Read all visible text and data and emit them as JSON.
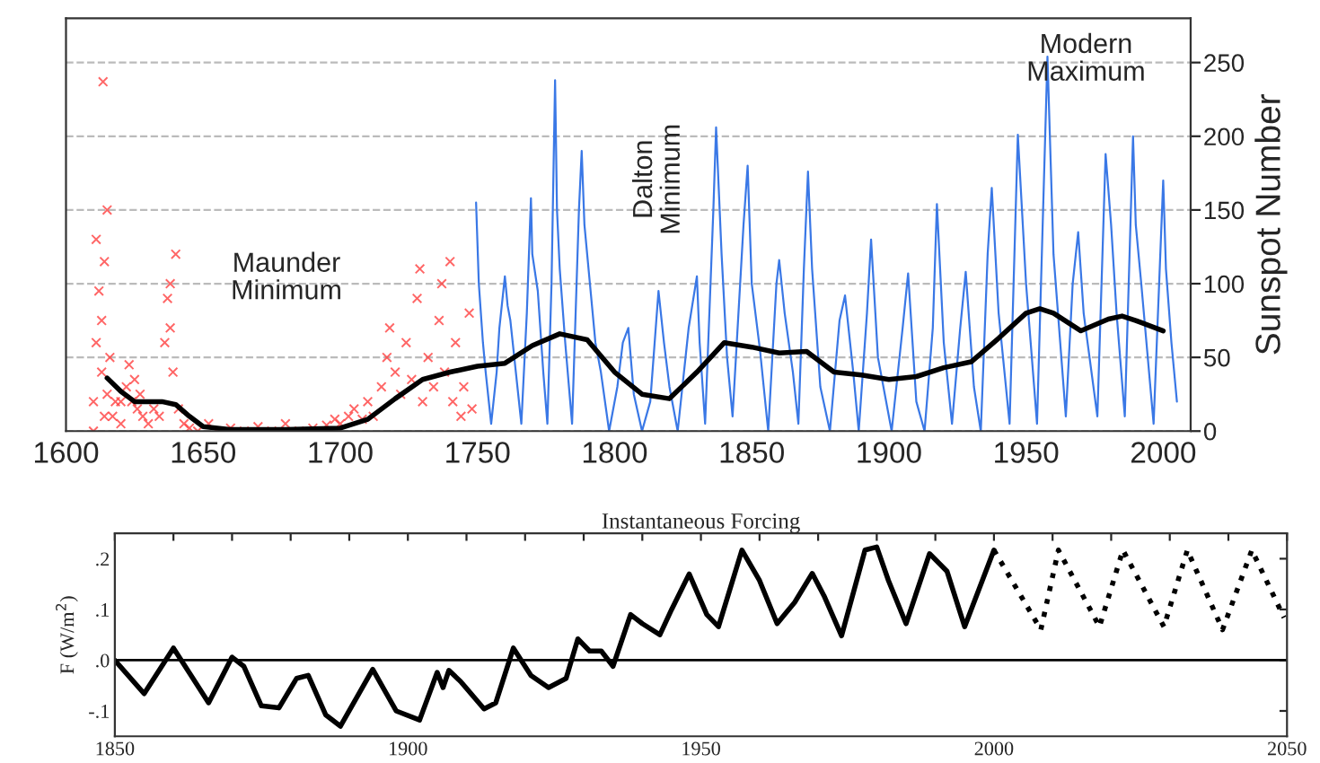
{
  "chart_data": [
    {
      "type": "line",
      "ylabel": "Sunspot Number",
      "xlim": [
        1600,
        2010
      ],
      "ylim": [
        0,
        280
      ],
      "xticks": [
        1600,
        1650,
        1700,
        1750,
        1800,
        1850,
        1900,
        1950,
        2000
      ],
      "yticks": [
        0,
        50,
        100,
        150,
        200,
        250
      ],
      "grid": "y",
      "annotations": [
        "Maunder\nMinimum",
        "Dalton\nMinimum",
        "Modern\nMaximum"
      ],
      "series": [
        {
          "type": "scatter",
          "marker": "cross",
          "color": "#ff4040",
          "x": [
            1610,
            1610,
            1611,
            1611,
            1613.5,
            1612,
            1613,
            1613,
            1614,
            1614,
            1615,
            1615,
            1616,
            1617,
            1618,
            1620,
            1620,
            1622,
            1623,
            1624,
            1625,
            1626,
            1627,
            1628,
            1630,
            1632,
            1634,
            1636,
            1637,
            1638,
            1638,
            1639,
            1640,
            1641,
            1643,
            1645,
            1648,
            1652,
            1655,
            1660,
            1665,
            1670,
            1675,
            1680,
            1685,
            1690,
            1695,
            1698,
            1700,
            1703,
            1705,
            1708,
            1710,
            1712,
            1715,
            1717,
            1718,
            1720,
            1722,
            1724,
            1726,
            1728,
            1729,
            1730,
            1732,
            1734,
            1736,
            1737,
            1738,
            1740,
            1741,
            1742,
            1744,
            1745,
            1747,
            1748
          ],
          "values": [
            0,
            20,
            60,
            130,
            237,
            95,
            75,
            40,
            115,
            10,
            150,
            25,
            50,
            10,
            20,
            5,
            20,
            30,
            45,
            20,
            35,
            15,
            25,
            10,
            5,
            15,
            10,
            60,
            90,
            100,
            70,
            40,
            120,
            15,
            5,
            2,
            0,
            5,
            0,
            2,
            0,
            3,
            0,
            5,
            0,
            2,
            4,
            8,
            5,
            10,
            15,
            8,
            20,
            10,
            30,
            50,
            70,
            40,
            25,
            60,
            35,
            90,
            110,
            20,
            50,
            30,
            75,
            100,
            40,
            115,
            20,
            60,
            10,
            30,
            80,
            15
          ]
        },
        {
          "type": "line",
          "color": "#3a78e6",
          "x": [
            1749.5,
            1750.5,
            1752,
            1753,
            1755,
            1757,
            1758,
            1760,
            1761,
            1762,
            1764,
            1766,
            1768,
            1769.5,
            1770,
            1772,
            1774,
            1775.5,
            1777,
            1778.3,
            1779,
            1780,
            1782,
            1784.5,
            1787,
            1788,
            1789,
            1791,
            1793,
            1795,
            1798,
            1801,
            1803,
            1805,
            1807,
            1810,
            1813,
            1816,
            1818,
            1820,
            1823,
            1827,
            1830,
            1831,
            1833,
            1836,
            1837,
            1839,
            1841,
            1843,
            1847,
            1848.5,
            1850,
            1853,
            1856,
            1859,
            1860,
            1862,
            1865,
            1867,
            1869,
            1870.5,
            1872,
            1875,
            1878.5,
            1882,
            1884,
            1887,
            1889,
            1892,
            1893.5,
            1896,
            1901,
            1905,
            1907,
            1910,
            1913,
            1916,
            1917.5,
            1920,
            1923,
            1926,
            1928,
            1931,
            1933.5,
            1936,
            1937.5,
            1940,
            1944,
            1947,
            1950,
            1954,
            1957.8,
            1960,
            1964.5,
            1967,
            1969,
            1971,
            1976,
            1979,
            1981,
            1983,
            1986,
            1989,
            1990,
            1992,
            1996.5,
            2000,
            2001,
            2003,
            2005
          ],
          "values": [
            155,
            100,
            60,
            40,
            5,
            40,
            70,
            105,
            85,
            75,
            40,
            5,
            80,
            158,
            120,
            95,
            40,
            5,
            100,
            238,
            150,
            110,
            60,
            5,
            150,
            190,
            140,
            100,
            60,
            40,
            0,
            30,
            60,
            70,
            25,
            0,
            20,
            95,
            60,
            30,
            0,
            70,
            105,
            60,
            5,
            150,
            206,
            120,
            50,
            10,
            140,
            180,
            100,
            55,
            0,
            100,
            116,
            80,
            40,
            5,
            110,
            176,
            110,
            30,
            0,
            75,
            92,
            40,
            0,
            80,
            130,
            50,
            0,
            70,
            107,
            20,
            0,
            70,
            154,
            60,
            5,
            70,
            108,
            30,
            0,
            120,
            165,
            80,
            5,
            201,
            100,
            5,
            254,
            120,
            10,
            100,
            135,
            80,
            10,
            188,
            140,
            80,
            10,
            200,
            140,
            100,
            5,
            170,
            110,
            60,
            20
          ]
        },
        {
          "type": "line",
          "color": "#000000",
          "x": [
            1615,
            1620,
            1625,
            1635,
            1640,
            1645,
            1650,
            1660,
            1680,
            1700,
            1710,
            1720,
            1730,
            1740,
            1750,
            1760,
            1770,
            1780,
            1790,
            1800,
            1810,
            1820,
            1830,
            1840,
            1850,
            1860,
            1870,
            1880,
            1890,
            1900,
            1910,
            1920,
            1930,
            1940,
            1950,
            1955,
            1960,
            1970,
            1980,
            1985,
            1990,
            2000
          ],
          "values": [
            36,
            27,
            20,
            20,
            18,
            10,
            3,
            1,
            1,
            2,
            8,
            22,
            35,
            40,
            44,
            46,
            58,
            66,
            62,
            40,
            25,
            22,
            40,
            60,
            57,
            53,
            54,
            40,
            38,
            35,
            37,
            43,
            47,
            63,
            80,
            83,
            80,
            68,
            76,
            78,
            75,
            68
          ]
        }
      ]
    },
    {
      "type": "line",
      "title": "Instantaneous Forcing",
      "ylabel": "F (W/m$^{2}$)",
      "xlim": [
        1850,
        2050
      ],
      "ylim": [
        -0.15,
        0.25
      ],
      "xticks": [
        1850,
        {
          "value": 1860,
          "label": null
        },
        {
          "value": 1870,
          "label": null
        },
        {
          "value": 1880,
          "label": null
        },
        {
          "value": 1890,
          "label": null
        },
        1900,
        {
          "value": 1910,
          "label": null
        },
        {
          "value": 1920,
          "label": null
        },
        {
          "value": 1930,
          "label": null
        },
        {
          "value": 1940,
          "label": null
        },
        1950,
        {
          "value": 1960,
          "label": null
        },
        {
          "value": 1970,
          "label": null
        },
        {
          "value": 1980,
          "label": null
        },
        {
          "value": 1990,
          "label": null
        },
        2000,
        {
          "value": 2010,
          "label": null
        },
        {
          "value": 2020,
          "label": null
        },
        {
          "value": 2030,
          "label": null
        },
        {
          "value": 2040,
          "label": null
        },
        2050
      ],
      "yticks": [
        {
          "value": -0.1,
          "label": "-.1"
        },
        {
          "value": 0,
          "label": ".0"
        },
        {
          "value": 0.1,
          "label": ".1"
        },
        {
          "value": 0.2,
          "label": ".2"
        }
      ],
      "ref_lines": [
        {
          "axis": "y",
          "value": 0,
          "color": "#000000"
        }
      ],
      "series": [
        {
          "color": "#000000",
          "line_style": "solid",
          "x": [
            1850,
            1855,
            1860,
            1866,
            1870,
            1872,
            1875,
            1878,
            1881,
            1883,
            1886,
            1888.5,
            1894,
            1898,
            1902,
            1905,
            1906,
            1907,
            1909,
            1913,
            1915,
            1918,
            1921,
            1924,
            1927,
            1929,
            1931,
            1933,
            1935,
            1938,
            1940,
            1943,
            1945,
            1948,
            1951,
            1953,
            1957,
            1960,
            1963,
            1966,
            1969,
            1971,
            1974,
            1978,
            1980,
            1982,
            1985,
            1989,
            1992,
            1995,
            2000
          ],
          "values": [
            0.0,
            -0.066,
            0.024,
            -0.084,
            0.006,
            -0.012,
            -0.09,
            -0.094,
            -0.036,
            -0.03,
            -0.108,
            -0.13,
            -0.018,
            -0.1,
            -0.118,
            -0.024,
            -0.054,
            -0.02,
            -0.042,
            -0.096,
            -0.084,
            0.024,
            -0.03,
            -0.054,
            -0.036,
            0.042,
            0.018,
            0.018,
            -0.012,
            0.09,
            0.072,
            0.05,
            0.1,
            0.17,
            0.09,
            0.066,
            0.217,
            0.157,
            0.072,
            0.114,
            0.171,
            0.127,
            0.048,
            0.217,
            0.223,
            0.157,
            0.072,
            0.21,
            0.175,
            0.066,
            0.217
          ]
        },
        {
          "color": "#000000",
          "line_style": "dotted",
          "x": [
            2000,
            2008,
            2011,
            2018,
            2022,
            2029,
            2033,
            2039,
            2044,
            2049.5
          ],
          "values": [
            0.217,
            0.06,
            0.217,
            0.066,
            0.217,
            0.066,
            0.217,
            0.06,
            0.217,
            0.084
          ]
        }
      ]
    }
  ]
}
